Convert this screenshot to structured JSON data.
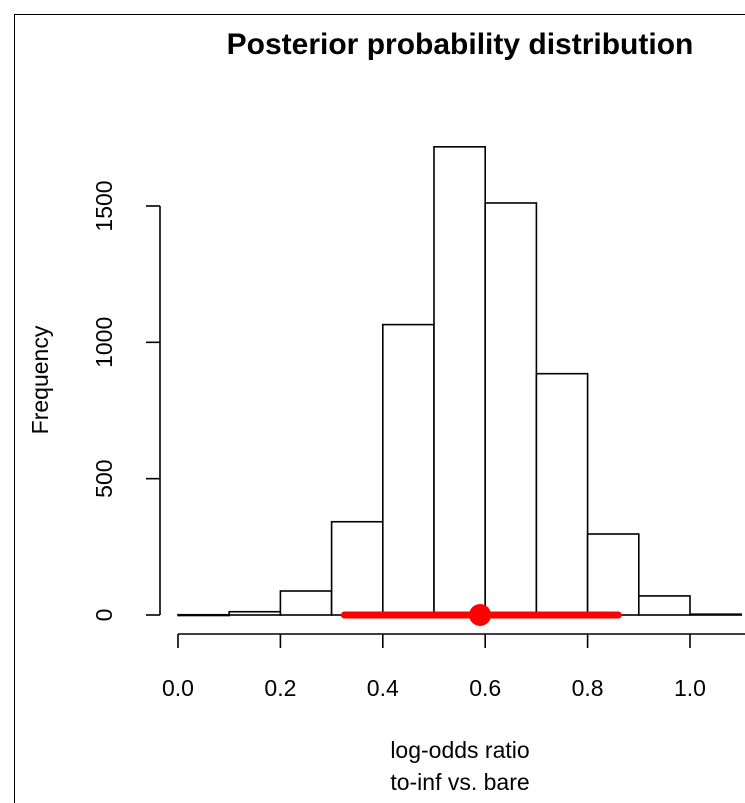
{
  "chart_data": {
    "type": "bar",
    "title": "Posterior probability distribution",
    "ylabel": "Frequency",
    "xlabel_lines": [
      "log-odds ratio",
      "to-inf vs. bare"
    ],
    "xticks": [
      "0.0",
      "0.2",
      "0.4",
      "0.6",
      "0.8",
      "1.0"
    ],
    "xtick_values": [
      0.0,
      0.2,
      0.4,
      0.6,
      0.8,
      1.0
    ],
    "yticks": [
      "0",
      "500",
      "1000",
      "1500"
    ],
    "ytick_values": [
      0,
      500,
      1000,
      1500
    ],
    "xlim": [
      -0.02,
      1.11
    ],
    "ylim": [
      0,
      1720
    ],
    "bin_edges": [
      0.0,
      0.1,
      0.2,
      0.3,
      0.4,
      0.5,
      0.6,
      0.7,
      0.8,
      0.9,
      1.0,
      1.1
    ],
    "counts": [
      1,
      12,
      88,
      342,
      1065,
      1717,
      1511,
      885,
      297,
      70,
      3
    ],
    "interval": {
      "low": 0.325,
      "high": 0.86,
      "point": 0.59,
      "color": "#ff0000"
    },
    "grid": false
  }
}
